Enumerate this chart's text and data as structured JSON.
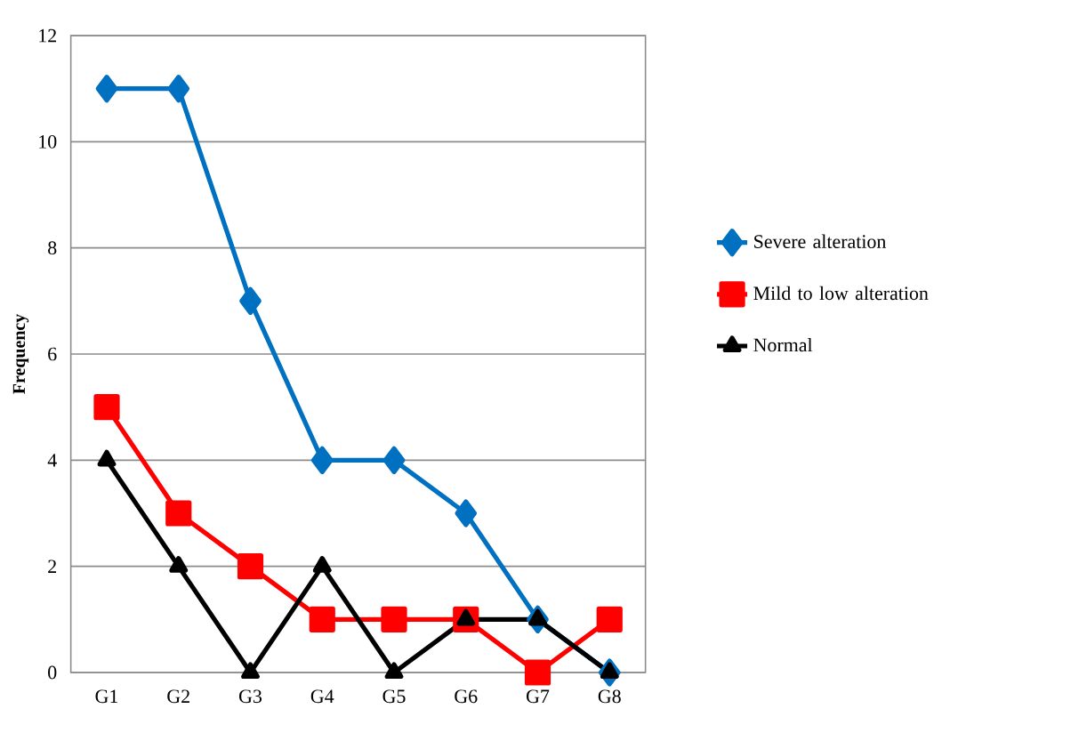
{
  "chart_data": {
    "type": "line",
    "ylabel": "Frequency",
    "categories": [
      "G1",
      "G2",
      "G3",
      "G4",
      "G5",
      "G6",
      "G7",
      "G8"
    ],
    "series": [
      {
        "name": "Severe alteration",
        "color": "#0070c0",
        "marker": "diamond",
        "values": [
          11,
          11,
          7,
          4,
          4,
          3,
          1,
          0
        ]
      },
      {
        "name": "Mild to low alteration",
        "color": "#ff0000",
        "marker": "square",
        "values": [
          5,
          3,
          2,
          1,
          1,
          1,
          0,
          1
        ]
      },
      {
        "name": "Normal",
        "color": "#000000",
        "marker": "triangle",
        "values": [
          4,
          2,
          0,
          2,
          0,
          1,
          1,
          0
        ]
      }
    ],
    "ylim": [
      0,
      12
    ],
    "yticks": [
      0,
      2,
      4,
      6,
      8,
      10,
      12
    ],
    "grid": "y",
    "legend": "right",
    "line_style": "solid"
  }
}
